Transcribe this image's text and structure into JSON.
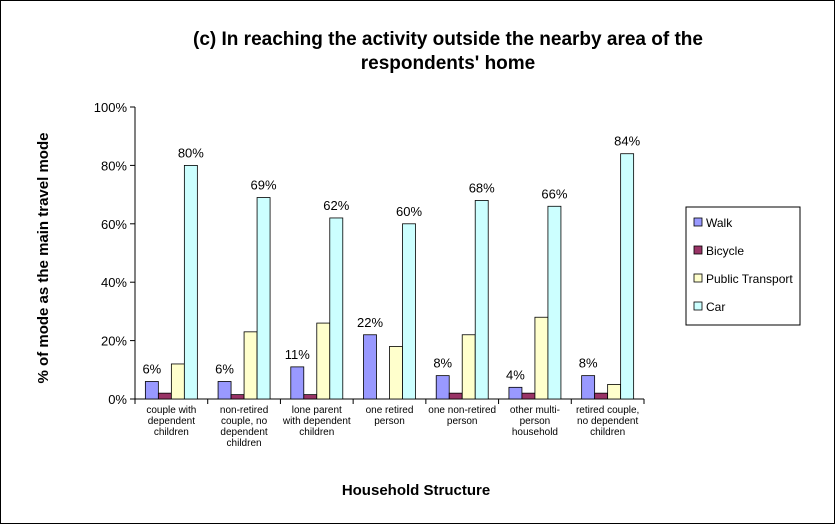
{
  "chart_data": {
    "type": "bar",
    "title_lines": [
      "(c) In reaching the activity outside the nearby area of the",
      "respondents' home"
    ],
    "xlabel": "Household Structure",
    "ylabel": "% of mode as the main travel mode",
    "ylim": [
      0,
      100
    ],
    "yticks": [
      "0%",
      "20%",
      "40%",
      "60%",
      "80%",
      "100%"
    ],
    "categories": [
      [
        "couple with",
        "dependent",
        "children"
      ],
      [
        "non-retired",
        "couple, no",
        "dependent",
        "children"
      ],
      [
        "lone parent",
        "with dependent",
        "children"
      ],
      [
        "one retired",
        "person"
      ],
      [
        "one non-retired",
        "person"
      ],
      [
        "other multi-",
        "person",
        "household"
      ],
      [
        "retired couple,",
        "no dependent",
        "children"
      ]
    ],
    "series": [
      {
        "name": "Walk",
        "color": "#9999ff",
        "values": [
          6,
          6,
          11,
          22,
          8,
          4,
          8
        ],
        "labels": [
          "6%",
          "6%",
          "11%",
          "22%",
          "8%",
          "4%",
          "8%"
        ]
      },
      {
        "name": "Bicycle",
        "color": "#993366",
        "values": [
          2,
          1.5,
          1.5,
          0,
          2,
          2,
          2
        ],
        "labels": []
      },
      {
        "name": "Public Transport",
        "color": "#ffffcc",
        "values": [
          12,
          23,
          26,
          18,
          22,
          28,
          5
        ],
        "labels": []
      },
      {
        "name": "Car",
        "color": "#ccffff",
        "values": [
          80,
          69,
          62,
          60,
          68,
          66,
          84
        ],
        "labels": [
          "80%",
          "69%",
          "62%",
          "60%",
          "68%",
          "66%",
          "84%"
        ]
      }
    ],
    "legend_position": "right",
    "grid": false
  }
}
